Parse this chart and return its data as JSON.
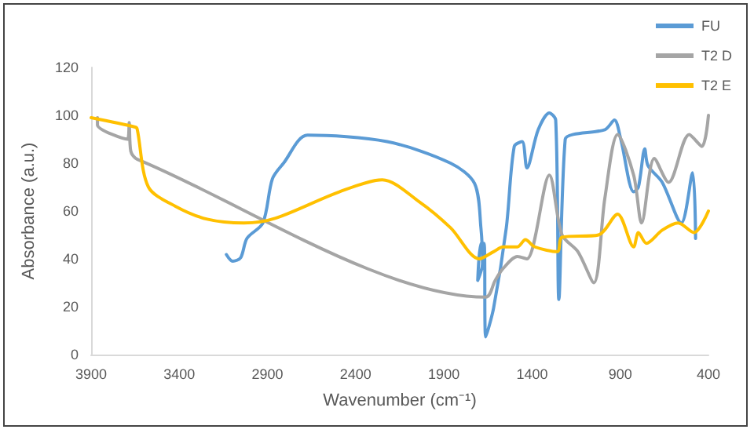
{
  "chart_data": {
    "type": "line",
    "xlabel": "Wavenumber (cm⁻¹)",
    "ylabel": "Absorbance (a.u.)",
    "xlim": [
      3900,
      400
    ],
    "xticks": [
      3900,
      3400,
      2900,
      2400,
      1900,
      1400,
      900,
      400
    ],
    "ylim": [
      0,
      120
    ],
    "yticks": [
      0,
      20,
      40,
      60,
      80,
      100,
      120
    ],
    "grid": false,
    "legend": "top right",
    "marker": "none",
    "line_style": "solid",
    "series": [
      {
        "name": "FU",
        "color": "#5b9bd5",
        "x": [
          3133,
          3097,
          3052,
          3016,
          2926,
          2872,
          2809,
          2673,
          2222,
          1862,
          1726,
          1690,
          1681,
          1708,
          1690,
          1672,
          1663,
          1618,
          1546,
          1501,
          1456,
          1429,
          1365,
          1302,
          1266,
          1248,
          1212,
          1167,
          987,
          933,
          897,
          824,
          797,
          761,
          743,
          662,
          554,
          490,
          473
        ],
        "values": [
          41.8,
          39,
          40.5,
          48.6,
          55,
          73.5,
          80,
          91.7,
          89,
          80,
          71.5,
          53,
          38,
          31,
          46.5,
          46.5,
          7.4,
          19.5,
          53,
          87,
          89,
          78,
          94,
          101,
          98,
          23,
          90,
          92,
          94,
          98,
          90,
          68,
          70,
          86,
          79,
          72,
          55,
          76,
          48.5
        ]
      },
      {
        "name": "T2 D",
        "color": "#a5a5a5",
        "x": [
          3864,
          3864,
          3693,
          3684,
          3675,
          3638,
          1663,
          1609,
          1564,
          1483,
          1429,
          1302,
          1230,
          1140,
          1050,
          987,
          915,
          824,
          779,
          707,
          626,
          509,
          437,
          400
        ],
        "values": [
          99,
          96,
          90,
          97,
          85,
          81.6,
          24,
          31,
          36,
          41,
          40,
          75,
          50,
          43,
          30,
          65.5,
          92,
          75,
          55,
          82,
          72,
          92,
          87,
          100
        ]
      },
      {
        "name": "T2 E",
        "color": "#ffc000",
        "x": [
          3900,
          3647,
          3638,
          3575,
          3422,
          3242,
          3034,
          2854,
          2493,
          2249,
          2042,
          1862,
          1699,
          1618,
          1564,
          1483,
          1438,
          1384,
          1257,
          1230,
          1023,
          915,
          824,
          797,
          752,
          662,
          572,
          482,
          400
        ],
        "values": [
          99,
          95,
          94,
          70,
          62,
          56.6,
          55,
          57,
          68,
          73,
          64,
          53,
          40,
          43,
          45,
          45,
          48,
          45,
          43,
          49,
          50,
          58.7,
          45,
          51,
          46.5,
          52,
          55,
          51,
          60
        ]
      }
    ]
  }
}
